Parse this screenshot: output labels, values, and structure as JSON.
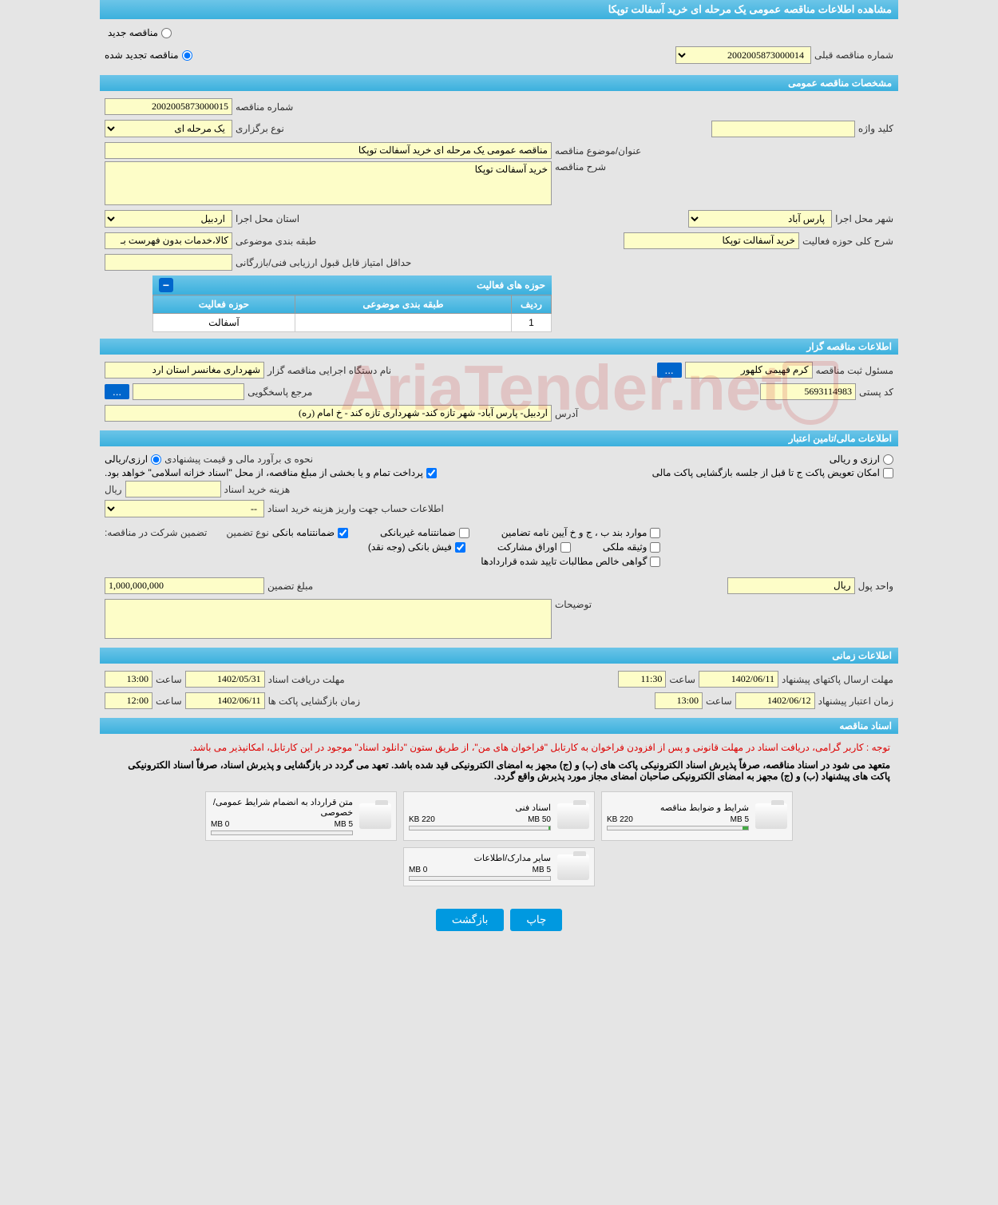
{
  "header": {
    "title": "مشاهده اطلاعات مناقصه عمومی یک مرحله ای خرید آسفالت توپکا"
  },
  "tender_status": {
    "new": "مناقصه جدید",
    "renewed": "مناقصه تجدید شده",
    "prev_number_label": "شماره مناقصه قبلی",
    "prev_number": "2002005873000014"
  },
  "sections": {
    "general": "مشخصات مناقصه عمومی",
    "organizer": "اطلاعات مناقصه گزار",
    "financial": "اطلاعات مالی/تامین اعتبار",
    "timing": "اطلاعات زمانی",
    "documents": "اسناد مناقصه",
    "activities": "حوزه های فعالیت"
  },
  "general": {
    "number_label": "شماره مناقصه",
    "number": "2002005873000015",
    "keyword_label": "کلید واژه",
    "keyword": "",
    "type_label": "نوع برگزاری",
    "type": "یک مرحله ای",
    "subject_label": "عنوان/موضوع مناقصه",
    "subject": "مناقصه عمومی یک مرحله ای خرید آسفالت توپکا",
    "description_label": "شرح مناقصه",
    "description": "خرید آسفالت توپکا",
    "province_label": "استان محل اجرا",
    "province": "اردبیل",
    "city_label": "شهر محل اجرا",
    "city": "پارس آباد",
    "category_label": "طبقه بندی موضوعی",
    "category": "کالا،خدمات بدون فهرست بـ",
    "activity_desc_label": "شرح کلی حوزه فعالیت",
    "activity_desc": "خرید آسفالت توپکا",
    "min_score_label": "حداقل امتیاز قابل قبول ارزیابی فنی/بازرگانی",
    "min_score": ""
  },
  "activities_table": {
    "cols": [
      "ردیف",
      "طبقه بندی موضوعی",
      "حوزه فعالیت"
    ],
    "rows": [
      [
        "1",
        "",
        "آسفالت"
      ]
    ]
  },
  "organizer": {
    "executor_label": "نام دستگاه اجرایی مناقصه گزار",
    "executor": "شهرداری مغانسر استان ارد",
    "registrar_label": "مسئول ثبت مناقصه",
    "registrar": "کرم فهیمی کلهور",
    "response_ref_label": "مرجع پاسخگویی",
    "response_ref": "",
    "more_btn": "...",
    "postal_label": "کد پستی",
    "postal": "5693114983",
    "address_label": "آدرس",
    "address": "اردبیل- پارس آباد- شهر تازه کند- شهرداری تازه کند - خ امام (ره)"
  },
  "financial": {
    "estimate_label": "نحوه ی برآورد مالی و قیمت پیشنهادی",
    "rial_option": "ارزی/ریالی",
    "currency_option": "ارزی و ریالی",
    "treasury_note": "پرداخت تمام و یا بخشی از مبلغ مناقصه، از محل \"اسناد خزانه اسلامی\" خواهد بود.",
    "swap_option": "امکان تعویض پاکت ج تا قبل از جلسه بازگشایی پاکت مالی",
    "doc_cost_label": "هزینه خرید اسناد",
    "doc_cost": "",
    "currency_suffix": "ریال",
    "account_label": "اطلاعات حساب جهت واریز هزینه خرید اسناد",
    "account": "--",
    "guarantee_label": "تضمین شرکت در مناقصه:",
    "guarantee_type_label": "نوع تضمین",
    "guarantees": {
      "bank": "ضمانتنامه بانکی",
      "nonbank": "ضمانتنامه غیربانکی",
      "bylaws": "موارد بند ب ، ج و خ آیین نامه تضامین",
      "cash": "فیش بانکی (وجه نقد)",
      "partnership": "اوراق مشارکت",
      "property": "وثیقه ملکی",
      "certificate": "گواهی خالص مطالبات تایید شده قراردادها"
    },
    "amount_label": "مبلغ تضمین",
    "amount": "1,000,000,000",
    "unit_label": "واحد پول",
    "unit": "ریال",
    "notes_label": "توضیحات",
    "notes": ""
  },
  "timing": {
    "receive_label": "مهلت دریافت اسناد",
    "receive_date": "1402/05/31",
    "receive_time": "13:00",
    "send_label": "مهلت ارسال پاکتهای پیشنهاد",
    "send_date": "1402/06/11",
    "send_time": "11:30",
    "open_label": "زمان بازگشایی پاکت ها",
    "open_date": "1402/06/11",
    "open_time": "12:00",
    "validity_label": "زمان اعتبار پیشنهاد",
    "validity_date": "1402/06/12",
    "validity_time": "13:00",
    "time_label": "ساعت"
  },
  "documents": {
    "note_red": "توجه : کاربر گرامی، دریافت اسناد در مهلت قانونی و پس از افزودن فراخوان به کارتابل \"فراخوان های من\"، از طریق ستون \"دانلود اسناد\" موجود در این کارتابل، امکانپذیر می باشد.",
    "note_black": "متعهد می شود در اسناد مناقصه، صرفاً پذیرش اسناد الکترونیکی پاکت های (ب) و (ج) مجهز به امضای الکترونیکی قید شده باشد. تعهد می گردد در بازگشایی و پذیرش اسناد، صرفاً اسناد الکترونیکی پاکت های پیشنهاد (ب) و (ج) مجهز به امضای الکترونیکی صاحبان امضای مجاز مورد پذیرش واقع گردد.",
    "files": [
      {
        "name": "شرایط و ضوابط مناقصه",
        "size": "220 KB",
        "max": "5 MB",
        "pct": 4
      },
      {
        "name": "اسناد فنی",
        "size": "220 KB",
        "max": "50 MB",
        "pct": 1
      },
      {
        "name": "متن قرارداد به انضمام شرایط عمومی/خصوصی",
        "size": "0 MB",
        "max": "5 MB",
        "pct": 0
      },
      {
        "name": "سایر مدارک/اطلاعات",
        "size": "0 MB",
        "max": "5 MB",
        "pct": 0
      }
    ]
  },
  "footer": {
    "print": "چاپ",
    "back": "بازگشت"
  },
  "watermark": "AriaTender.net"
}
